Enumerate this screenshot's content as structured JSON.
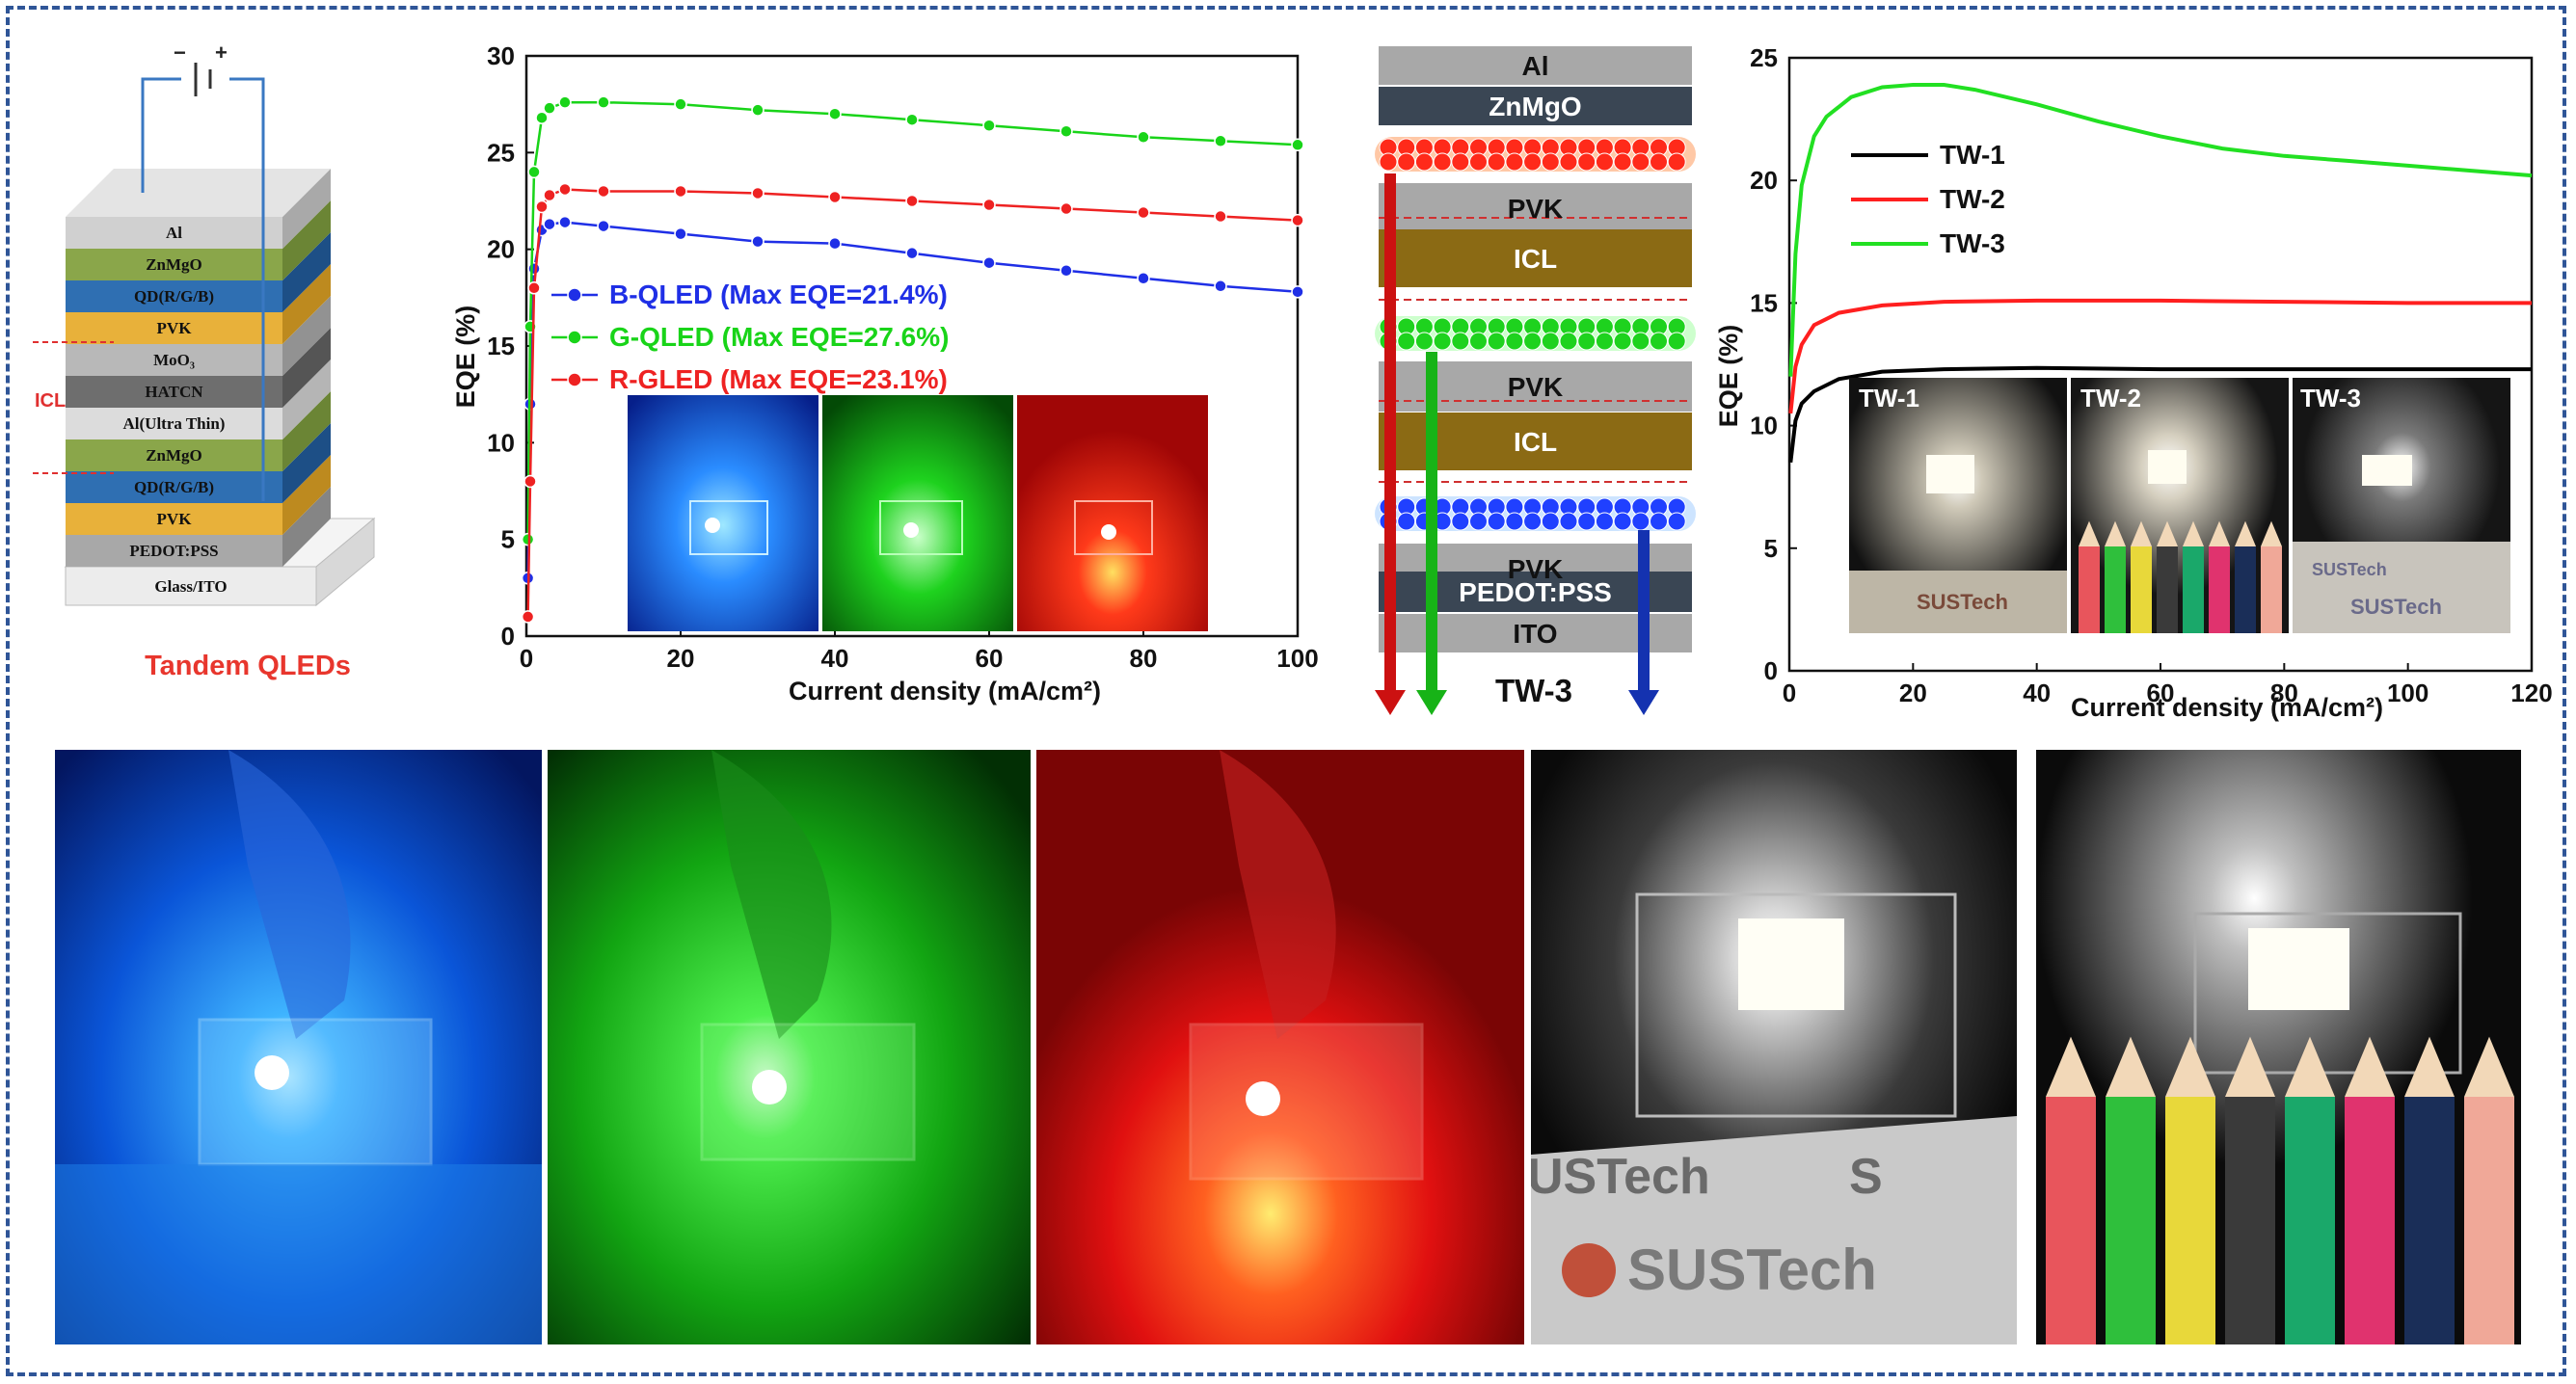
{
  "stack": {
    "polarity": {
      "minus": "−",
      "plus": "+"
    },
    "layers": [
      "Al",
      "ZnMgO",
      "QD(R/G/B)",
      "PVK",
      "MoO₃",
      "HATCN",
      "Al(Ultra Thin)",
      "ZnMgO",
      "QD(R/G/B)",
      "PVK",
      "PEDOT:PSS",
      "Glass/ITO"
    ],
    "icl_label": "ICL",
    "caption": "Tandem QLEDs"
  },
  "chart_data": [
    {
      "type": "line",
      "xlabel": "Current density (mA/cm²)",
      "ylabel": "EQE (%)",
      "xlim": [
        0,
        100
      ],
      "ylim": [
        0,
        30
      ],
      "xticks": [
        "0",
        "20",
        "40",
        "60",
        "80",
        "100"
      ],
      "yticks": [
        "0",
        "5",
        "10",
        "15",
        "20",
        "25",
        "30"
      ],
      "legend_position": "center-left",
      "series": [
        {
          "name": "B-QLED (Max EQE=21.4%)",
          "color": "#1f2fe6",
          "x": [
            0.2,
            0.5,
            1,
            2,
            3,
            5,
            10,
            20,
            30,
            40,
            50,
            60,
            70,
            80,
            90,
            100
          ],
          "y": [
            3,
            12,
            19,
            21.0,
            21.3,
            21.4,
            21.2,
            20.8,
            20.4,
            20.3,
            19.8,
            19.3,
            18.9,
            18.5,
            18.1,
            17.8
          ]
        },
        {
          "name": "G-QLED (Max EQE=27.6%)",
          "color": "#19d419",
          "x": [
            0.2,
            0.5,
            1,
            2,
            3,
            5,
            10,
            20,
            30,
            40,
            50,
            60,
            70,
            80,
            90,
            100
          ],
          "y": [
            5,
            16,
            24,
            26.8,
            27.3,
            27.6,
            27.6,
            27.5,
            27.2,
            27.0,
            26.7,
            26.4,
            26.1,
            25.8,
            25.6,
            25.4
          ]
        },
        {
          "name": "R-GLED (Max EQE=23.1%)",
          "color": "#ee2222",
          "x": [
            0.2,
            0.5,
            1,
            2,
            3,
            5,
            10,
            20,
            30,
            40,
            50,
            60,
            70,
            80,
            90,
            100
          ],
          "y": [
            1,
            8,
            18,
            22.2,
            22.8,
            23.1,
            23.0,
            23.0,
            22.9,
            22.7,
            22.5,
            22.3,
            22.1,
            21.9,
            21.7,
            21.5
          ]
        }
      ]
    },
    {
      "type": "line",
      "xlabel": "Current density (mA/cm²)",
      "ylabel": "EQE (%)",
      "xlim": [
        0,
        120
      ],
      "ylim": [
        0,
        25
      ],
      "xticks": [
        "0",
        "20",
        "40",
        "60",
        "80",
        "100",
        "120"
      ],
      "yticks": [
        "0",
        "5",
        "10",
        "15",
        "20",
        "25"
      ],
      "legend_position": "top-left",
      "series": [
        {
          "name": "TW-1",
          "color": "#000000",
          "x": [
            0.2,
            1,
            2,
            4,
            8,
            15,
            25,
            40,
            60,
            80,
            100,
            120
          ],
          "y": [
            8.5,
            10.2,
            10.9,
            11.4,
            11.9,
            12.2,
            12.3,
            12.35,
            12.3,
            12.3,
            12.3,
            12.3
          ]
        },
        {
          "name": "TW-2",
          "color": "#ff1f1f",
          "x": [
            0.2,
            1,
            2,
            4,
            8,
            15,
            25,
            40,
            60,
            80,
            100,
            120
          ],
          "y": [
            10.5,
            12.4,
            13.3,
            14.1,
            14.6,
            14.9,
            15.05,
            15.1,
            15.1,
            15.05,
            15.0,
            15.0
          ]
        },
        {
          "name": "TW-3",
          "color": "#22e022",
          "x": [
            0.2,
            1,
            2,
            4,
            6,
            10,
            15,
            20,
            25,
            30,
            40,
            50,
            60,
            70,
            80,
            90,
            100,
            110,
            120
          ],
          "y": [
            12,
            17,
            19.8,
            21.8,
            22.6,
            23.4,
            23.8,
            23.9,
            23.9,
            23.7,
            23.1,
            22.4,
            21.8,
            21.3,
            21.0,
            20.8,
            20.6,
            20.4,
            20.2
          ]
        }
      ]
    }
  ],
  "tw3_diagram": {
    "layers": [
      "Al",
      "ZnMgO",
      "PVK",
      "ICL",
      "PVK",
      "ICL",
      "PVK",
      "PEDOT:PSS",
      "ITO"
    ],
    "title": "TW-3"
  },
  "inset_labels": [
    "TW-1",
    "TW-2",
    "TW-3"
  ],
  "photo_text": {
    "brand": "SUSTech",
    "brand_partial": "USTech",
    "letter_s": "S"
  },
  "colors": {
    "blue": "#1f2fe6",
    "green": "#19d419",
    "red": "#ee2222",
    "frame": "#2f5597",
    "caption": "#e8362d"
  }
}
